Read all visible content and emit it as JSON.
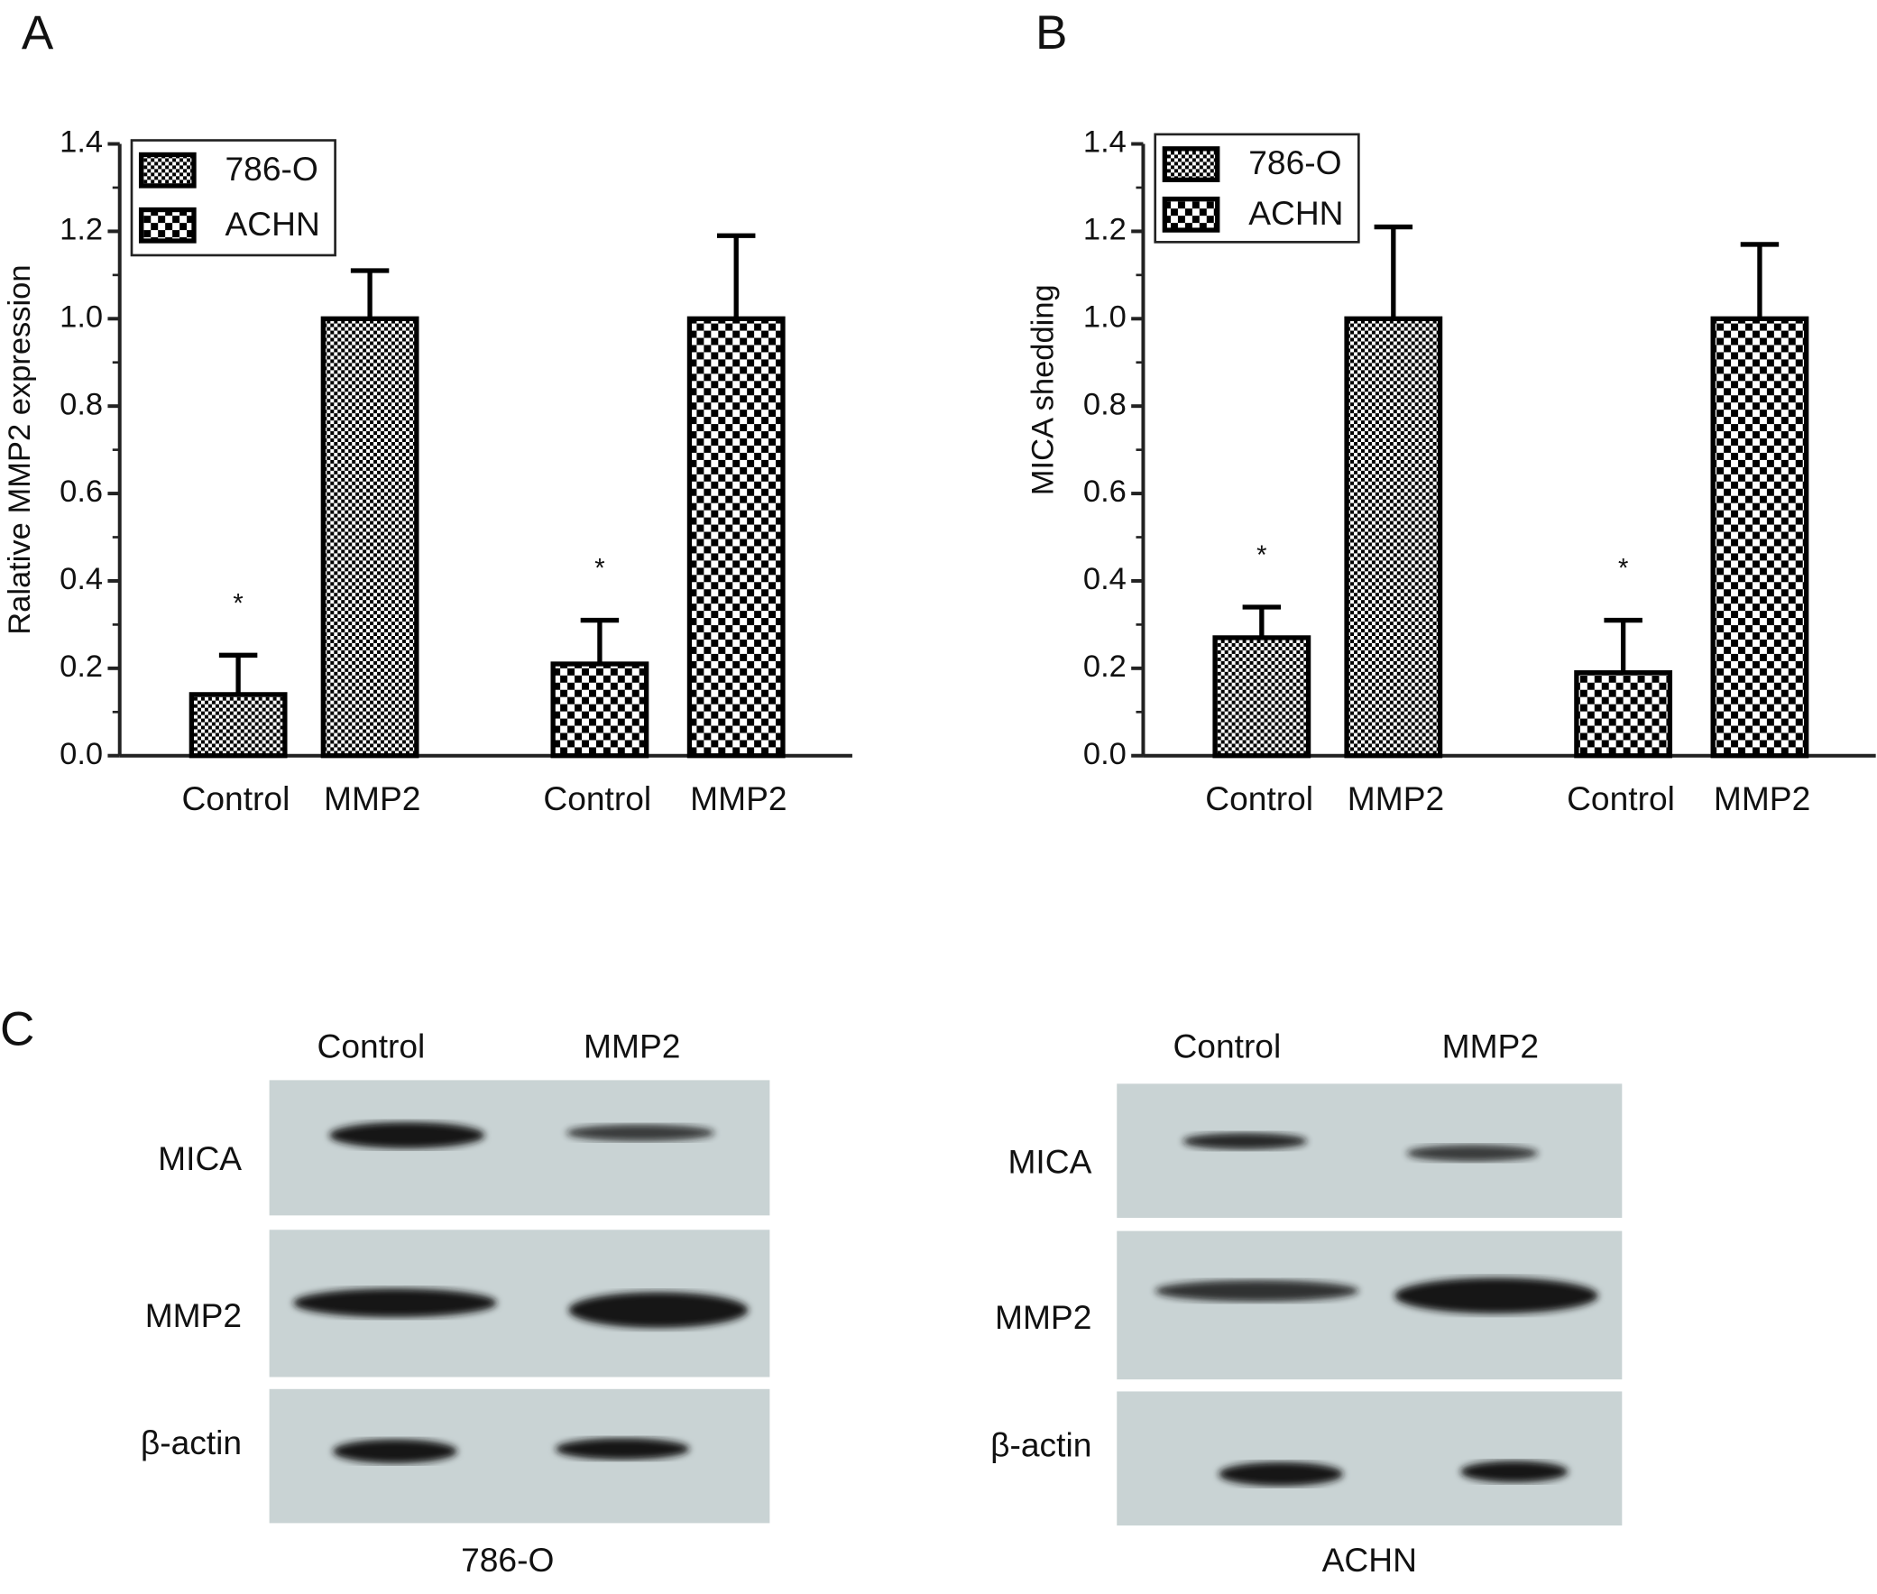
{
  "chart_data": [
    {
      "type": "bar",
      "panel": "A",
      "y_label": "Ralative MMP2 expression",
      "categories": [
        "Control",
        "MMP2"
      ],
      "series": [
        {
          "name": "786-O",
          "color": "#000000",
          "values": [
            0.14,
            1.0
          ],
          "errors": [
            0.09,
            0.11
          ],
          "marks": [
            "*",
            null
          ]
        },
        {
          "name": "ACHN",
          "color": "#000000",
          "values": [
            0.21,
            1.0
          ],
          "errors": [
            0.1,
            0.19
          ],
          "marks": [
            "*",
            null
          ]
        }
      ],
      "ylim": [
        0,
        1.4
      ],
      "yticks": [
        {
          "value": 0,
          "label": "0.0"
        },
        {
          "value": 0.2,
          "label": "0.2"
        },
        {
          "value": 0.4,
          "label": "0.4"
        },
        {
          "value": 0.6,
          "label": "0.6"
        },
        {
          "value": 0.8,
          "label": "0.8"
        },
        {
          "value": 1.0,
          "label": "1.0"
        },
        {
          "value": 1.2,
          "label": "1.2"
        },
        {
          "value": 1.4,
          "label": "1.4"
        }
      ],
      "legend": "top-left"
    },
    {
      "type": "bar",
      "panel": "B",
      "y_label": "MICA shedding",
      "categories": [
        "Control",
        "MMP2"
      ],
      "series": [
        {
          "name": "786-O",
          "color": "#000000",
          "values": [
            0.27,
            1.0
          ],
          "errors": [
            0.07,
            0.21
          ],
          "marks": [
            "*",
            null
          ]
        },
        {
          "name": "ACHN",
          "color": "#000000",
          "values": [
            0.19,
            1.0
          ],
          "errors": [
            0.12,
            0.17
          ],
          "marks": [
            "*",
            null
          ]
        }
      ],
      "ylim": [
        0,
        1.4
      ],
      "yticks": [
        {
          "value": 0,
          "label": "0.0"
        },
        {
          "value": 0.2,
          "label": "0.2"
        },
        {
          "value": 0.4,
          "label": "0.4"
        },
        {
          "value": 0.6,
          "label": "0.6"
        },
        {
          "value": 0.8,
          "label": "0.8"
        },
        {
          "value": 1.0,
          "label": "1.0"
        },
        {
          "value": 1.2,
          "label": "1.2"
        },
        {
          "value": 1.4,
          "label": "1.4"
        }
      ],
      "legend": "top-left"
    }
  ],
  "blots": {
    "panel": "C",
    "rows": [
      "MICA",
      "MMP2",
      "β-actin"
    ],
    "panels": [
      {
        "name": "786-O",
        "columns": [
          "Control",
          "MMP2"
        ]
      },
      {
        "name": "ACHN",
        "columns": [
          "Control",
          "MMP2"
        ]
      }
    ]
  }
}
